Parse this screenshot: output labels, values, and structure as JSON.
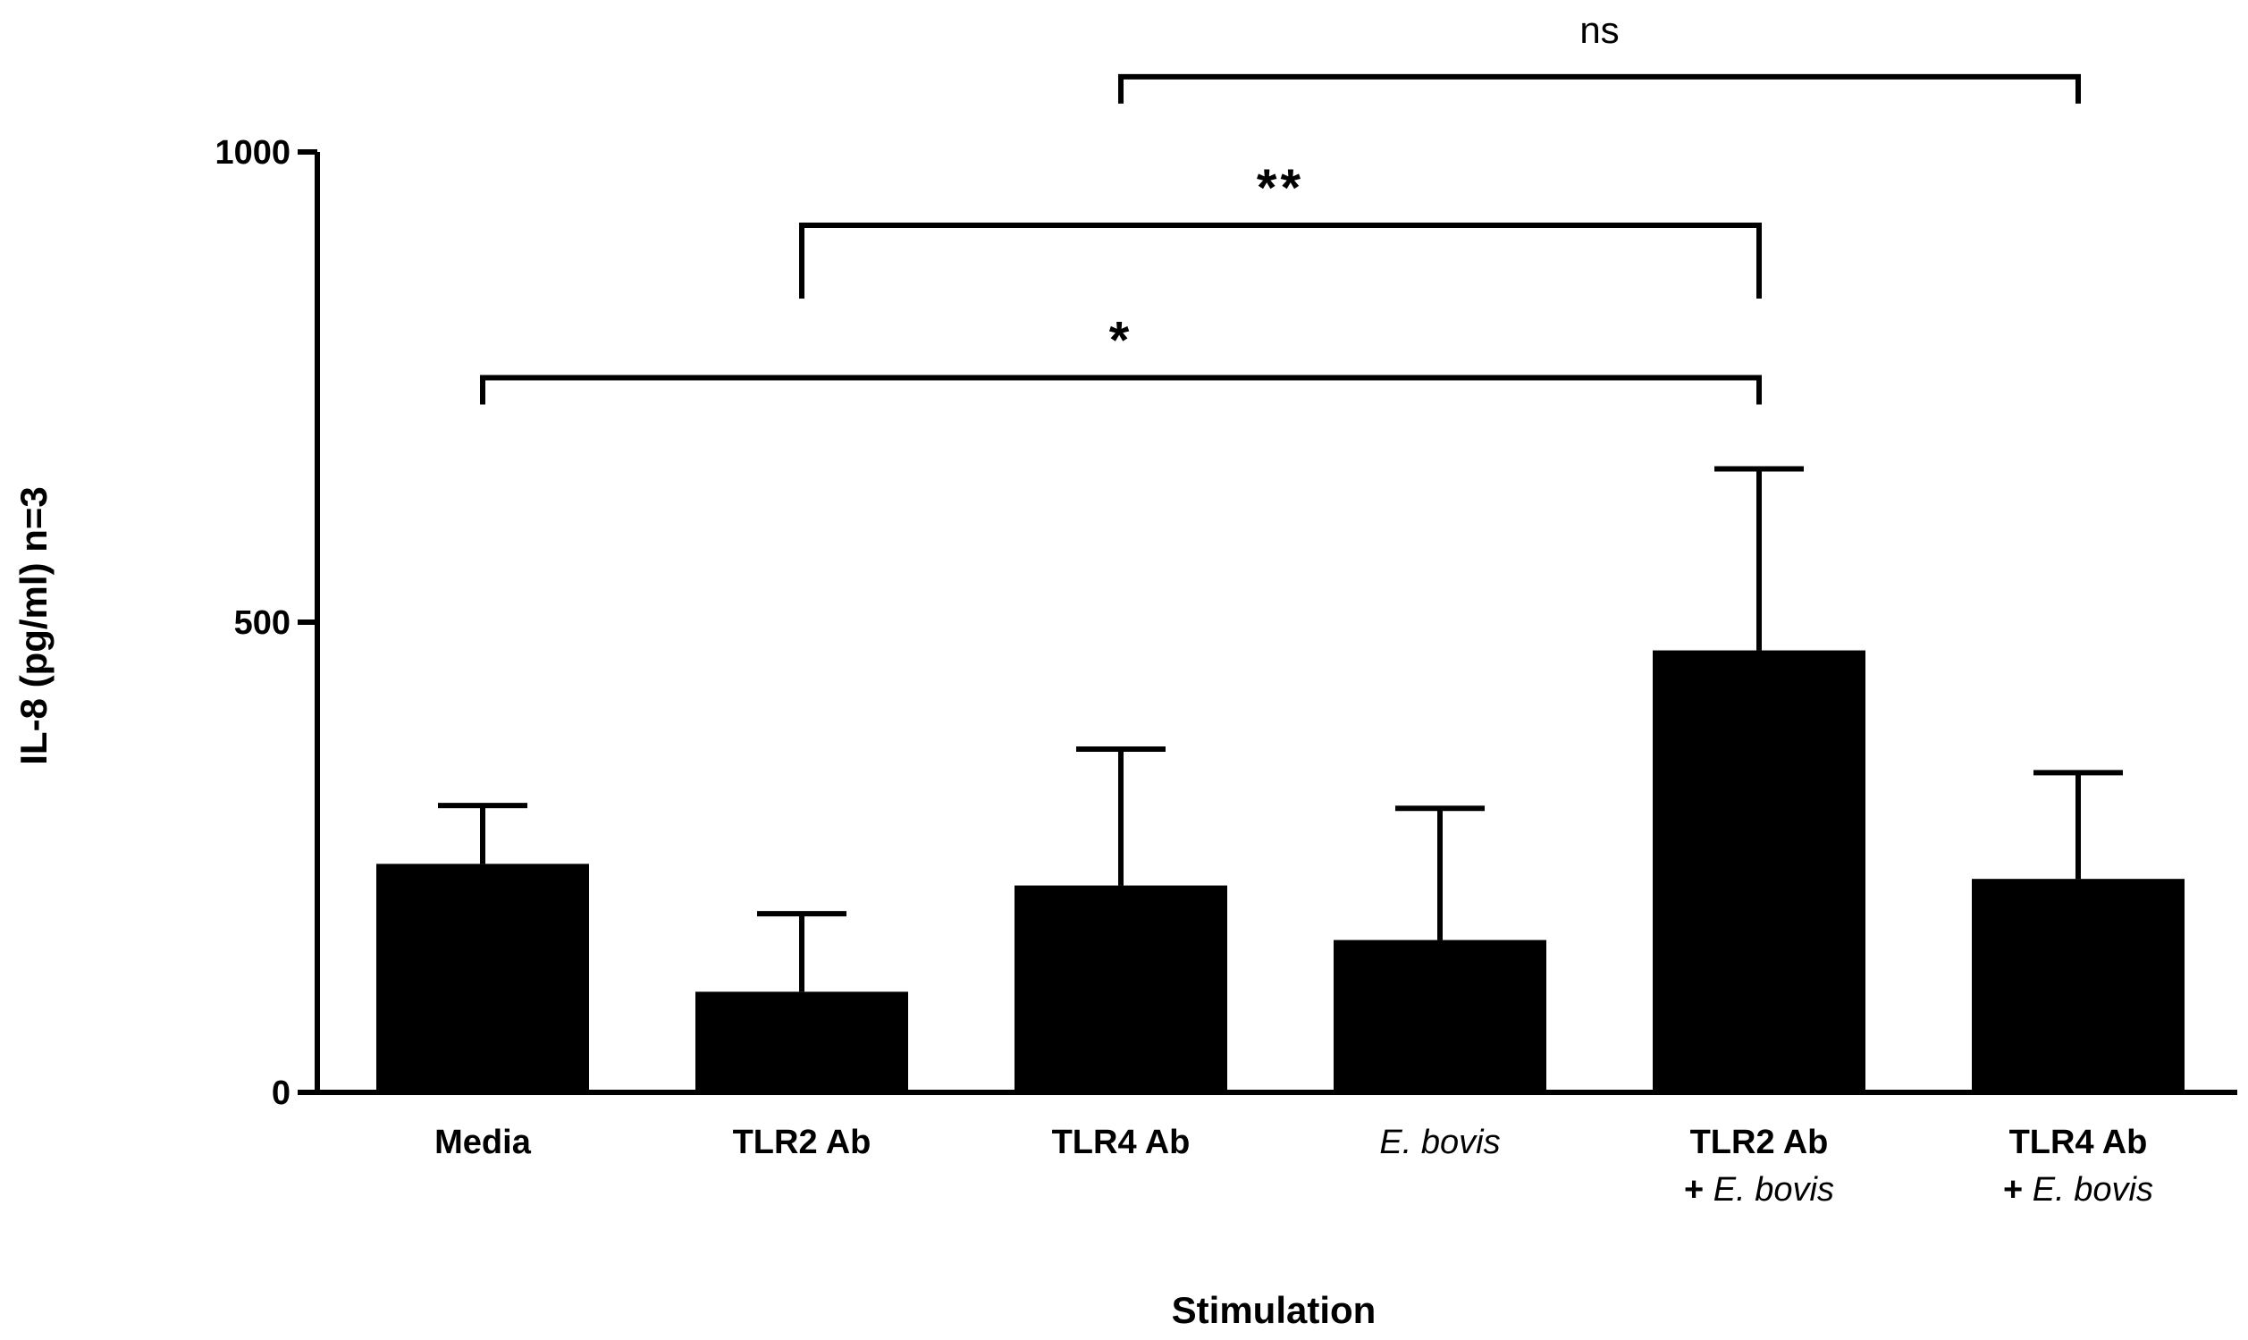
{
  "chart_data": {
    "type": "bar",
    "title": "",
    "xlabel": "Stimulation",
    "ylabel": "IL-8 (pg/ml) n=3",
    "ylim": [
      0,
      1000
    ],
    "yticks": [
      0,
      500,
      1000
    ],
    "categories": [
      {
        "line1": "Media",
        "line1_italic": false,
        "line2": ""
      },
      {
        "line1": "TLR2 Ab",
        "line1_italic": false,
        "line2": ""
      },
      {
        "line1": "TLR4 Ab",
        "line1_italic": false,
        "line2": ""
      },
      {
        "line1": "E. bovis",
        "line1_italic": true,
        "line2": ""
      },
      {
        "line1": "TLR2 Ab",
        "line1_italic": false,
        "line2_prefix": "+ ",
        "line2": "E. bovis"
      },
      {
        "line1": "TLR4 Ab",
        "line1_italic": false,
        "line2_prefix": "+ ",
        "line2": "E. bovis"
      }
    ],
    "values": [
      243,
      107,
      220,
      162,
      470,
      227
    ],
    "errors": [
      62,
      83,
      145,
      140,
      193,
      113
    ],
    "significance": [
      {
        "from": 0,
        "to": 4,
        "label": "*",
        "level": 760
      },
      {
        "from": 1,
        "to": 4,
        "label": "**",
        "level": 922
      },
      {
        "from": 2,
        "to": 5,
        "label": "ns",
        "level": 1080
      }
    ],
    "bar_color": "#000000"
  }
}
